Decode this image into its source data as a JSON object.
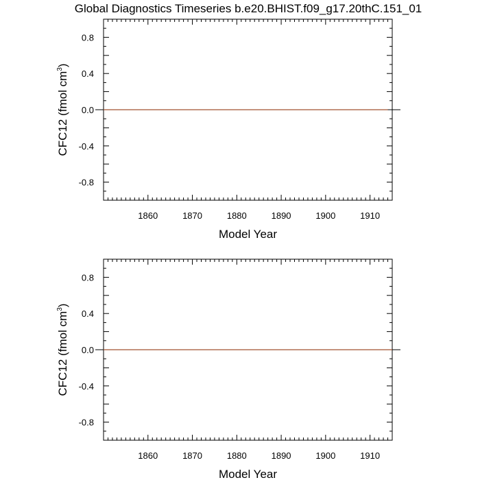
{
  "chart_data": [
    {
      "type": "line",
      "title": "Global Diagnostics Timeseries b.e20.BHIST.f09_g17.20thC.151_01",
      "xlabel": "Model Year",
      "ylabel": {
        "main": "CFC12 (fmol cm",
        "superscript": "3",
        "close": ")"
      },
      "xlim": [
        1850,
        1915
      ],
      "ylim": [
        -1.0,
        1.0
      ],
      "xticks": [
        1860,
        1870,
        1880,
        1890,
        1900,
        1910
      ],
      "yticks": [
        -0.8,
        -0.4,
        0.0,
        0.4,
        0.8
      ],
      "ytick_labels": [
        "-0.8",
        "-0.4",
        "0.0",
        "0.4",
        "0.8"
      ],
      "grid": false,
      "zero_line": true,
      "series": [
        {
          "color": "#a0522d",
          "x": [
            1850,
            1914
          ],
          "y": [
            0.0,
            0.0
          ]
        }
      ]
    },
    {
      "type": "line",
      "title": "",
      "xlabel": "Model Year",
      "ylabel": {
        "main": "CFC12 (fmol cm",
        "superscript": "3",
        "close": ")"
      },
      "xlim": [
        1850,
        1915
      ],
      "ylim": [
        -1.0,
        1.0
      ],
      "xticks": [
        1860,
        1870,
        1880,
        1890,
        1900,
        1910
      ],
      "yticks": [
        -0.8,
        -0.4,
        0.0,
        0.4,
        0.8
      ],
      "ytick_labels": [
        "-0.8",
        "-0.4",
        "0.0",
        "0.4",
        "0.8"
      ],
      "grid": false,
      "zero_line": true,
      "series": [
        {
          "color": "#a0522d",
          "x": [
            1850,
            1915
          ],
          "y": [
            0.0,
            0.0
          ]
        }
      ]
    }
  ]
}
